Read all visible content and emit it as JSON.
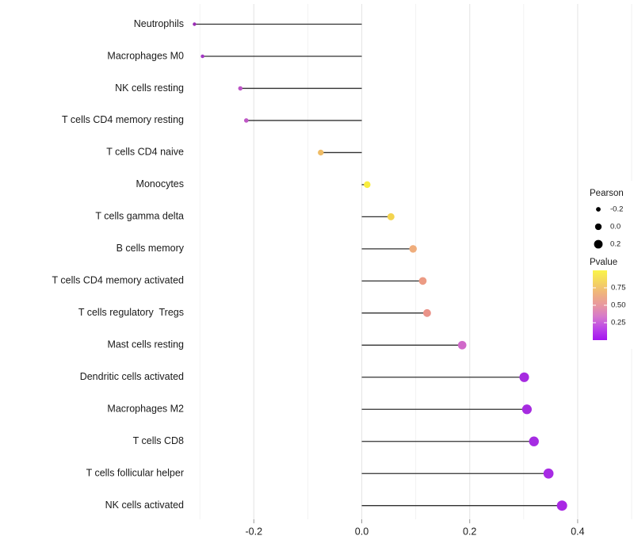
{
  "chart_data": {
    "type": "lollipop",
    "title": "",
    "xlabel": "",
    "ylabel": "",
    "x_tick_labels": [
      "-0.2",
      "0.0",
      "0.2",
      "0.4"
    ],
    "x_ticks_major": [
      -0.2,
      0.0,
      0.2,
      0.4
    ],
    "x_ticks_minor": [
      -0.3,
      -0.1,
      0.1,
      0.3,
      0.5
    ],
    "xlim": [
      -0.322,
      0.501
    ],
    "baseline_x": 0.0,
    "grid": "vertical-only",
    "legend_position": "right",
    "categories": [
      "Neutrophils",
      "Macrophages M0",
      "NK cells resting",
      "T cells CD4 memory resting",
      "T cells CD4 naive",
      "Monocytes",
      "T cells gamma delta",
      "B cells memory",
      "T cells CD4 memory activated",
      "T cells regulatory  Tregs",
      "Mast cells resting",
      "Dendritic cells activated",
      "Macrophages M2",
      "T cells CD8",
      "T cells follicular helper",
      "NK cells activated"
    ],
    "points": [
      {
        "label": "Neutrophils",
        "pearson": -0.31,
        "pvalue_approx": 0.17,
        "color": "#9B2DB5"
      },
      {
        "label": "Macrophages M0",
        "pearson": -0.295,
        "pvalue_approx": 0.18,
        "color": "#A338C4"
      },
      {
        "label": "NK cells resting",
        "pearson": -0.225,
        "pvalue_approx": 0.27,
        "color": "#BC53C6"
      },
      {
        "label": "T cells CD4 memory resting",
        "pearson": -0.214,
        "pvalue_approx": 0.28,
        "color": "#BF57C6"
      },
      {
        "label": "T cells CD4 naive",
        "pearson": -0.076,
        "pvalue_approx": 0.68,
        "color": "#EFBC66"
      },
      {
        "label": "Monocytes",
        "pearson": 0.01,
        "pvalue_approx": 0.93,
        "color": "#F8ED3F"
      },
      {
        "label": "T cells gamma delta",
        "pearson": 0.054,
        "pvalue_approx": 0.78,
        "color": "#F3D44F"
      },
      {
        "label": "B cells memory",
        "pearson": 0.095,
        "pvalue_approx": 0.63,
        "color": "#EFAD7C"
      },
      {
        "label": "T cells CD4 memory activated",
        "pearson": 0.113,
        "pvalue_approx": 0.57,
        "color": "#EC9B84"
      },
      {
        "label": "T cells regulatory  Tregs",
        "pearson": 0.121,
        "pvalue_approx": 0.55,
        "color": "#EA9389"
      },
      {
        "label": "Mast cells resting",
        "pearson": 0.186,
        "pvalue_approx": 0.33,
        "color": "#D069C9"
      },
      {
        "label": "Dendritic cells activated",
        "pearson": 0.301,
        "pvalue_approx": 0.1,
        "color": "#A62BE0"
      },
      {
        "label": "Macrophages M2",
        "pearson": 0.306,
        "pvalue_approx": 0.1,
        "color": "#A62BE0"
      },
      {
        "label": "T cells CD8",
        "pearson": 0.319,
        "pvalue_approx": 0.09,
        "color": "#A52CE2"
      },
      {
        "label": "T cells follicular helper",
        "pearson": 0.346,
        "pvalue_approx": 0.08,
        "color": "#A72BE4"
      },
      {
        "label": "NK cells activated",
        "pearson": 0.371,
        "pvalue_approx": 0.07,
        "color": "#A928E4"
      }
    ],
    "legend": {
      "size": {
        "title": "Pearson",
        "entries": [
          {
            "label": "-0.2",
            "value": -0.2
          },
          {
            "label": "0.0",
            "value": 0.0
          },
          {
            "label": "0.2",
            "value": 0.2
          }
        ],
        "dot_color": "#000000"
      },
      "color": {
        "title": "Pvalue",
        "tick_labels": [
          "0.75",
          "0.50",
          "0.25"
        ],
        "tick_values": [
          0.75,
          0.5,
          0.25
        ],
        "bar_range": [
          0.0,
          1.0
        ],
        "gradient_top_to_bottom": [
          "#FAF44A",
          "#F4D55F",
          "#EFB27E",
          "#E897A0",
          "#D679CC",
          "#BC45E8",
          "#A414F0"
        ]
      }
    }
  },
  "colors": {
    "background": "#FFFFFF",
    "stem": "#303030",
    "grid_major": "#E6E6E6",
    "grid_minor": "#F1F1F1",
    "axis_tick": "#999999",
    "axis_text": "#1A1A1A",
    "legend_text": "#1A1A1A"
  }
}
